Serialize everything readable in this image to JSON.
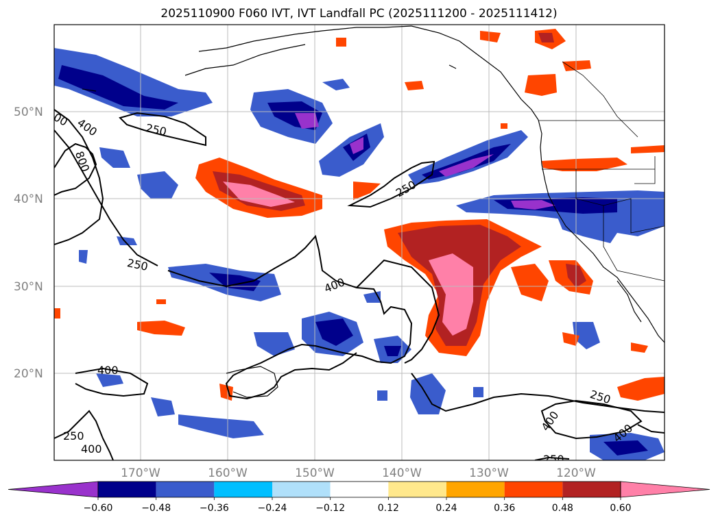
{
  "title": "2025110900 F060 IVT, IVT Landfall PC (2025111200 - 2025111412)",
  "lat_labels": [
    "50°N",
    "40°N",
    "30°N",
    "20°N"
  ],
  "lon_labels": [
    "170°W",
    "160°W",
    "150°W",
    "140°W",
    "130°W",
    "120°W"
  ],
  "colorbar": {
    "colors": [
      "#9932cc",
      "#00008b",
      "#3a5ccc",
      "#00bfff",
      "#b0e0fa",
      "#ffffff",
      "#ffe88c",
      "#ffa500",
      "#ff4500",
      "#b22222",
      "#ff80a8"
    ],
    "tick_labels": [
      "−0.60",
      "−0.48",
      "−0.36",
      "−0.24",
      "−0.12",
      "0.12",
      "0.24",
      "0.36",
      "0.48",
      "0.60"
    ]
  },
  "contour_labels": [
    {
      "text": "250"
    },
    {
      "text": "400"
    },
    {
      "text": "800"
    },
    {
      "text": "00"
    },
    {
      "text": "250"
    },
    {
      "text": "250"
    },
    {
      "text": "400"
    },
    {
      "text": "400"
    },
    {
      "text": "250"
    },
    {
      "text": "400"
    },
    {
      "text": "250"
    },
    {
      "text": "400"
    },
    {
      "text": "250"
    },
    {
      "text": "400"
    }
  ]
}
